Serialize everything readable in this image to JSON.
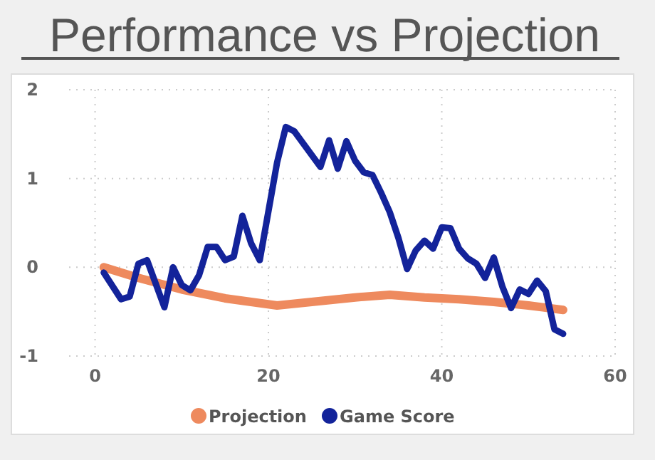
{
  "chart_data": {
    "type": "line",
    "title": "Performance vs Projection",
    "xlim": [
      -3,
      60
    ],
    "ylim": [
      -1,
      2
    ],
    "xticks": [
      0,
      20,
      40,
      60
    ],
    "yticks": [
      -1,
      0,
      1,
      2
    ],
    "grid": true,
    "legend": "bottom",
    "line_style": "solid",
    "marker": "none",
    "series": [
      {
        "name": "Projection",
        "color": "#ee8a5e",
        "x": [
          1,
          5,
          10,
          15,
          21,
          26,
          30,
          34,
          38,
          42,
          46,
          50,
          54
        ],
        "values": [
          0,
          -0.12,
          -0.25,
          -0.35,
          -0.43,
          -0.38,
          -0.34,
          -0.31,
          -0.34,
          -0.36,
          -0.39,
          -0.43,
          -0.48
        ]
      },
      {
        "name": "Game Score",
        "color": "#13239a",
        "x": [
          1,
          3,
          4,
          5,
          6,
          8,
          9,
          10,
          11,
          12,
          13,
          14,
          15,
          16,
          17,
          18,
          19,
          21,
          22,
          23,
          26,
          27,
          28,
          29,
          30,
          31,
          32,
          33,
          34,
          35,
          36,
          37,
          38,
          39,
          40,
          41,
          42,
          43,
          44,
          45,
          46,
          47,
          48,
          49,
          50,
          51,
          52,
          53,
          54
        ],
        "values": [
          -0.06,
          -0.36,
          -0.33,
          0.04,
          0.08,
          -0.45,
          0,
          -0.2,
          -0.26,
          -0.09,
          0.23,
          0.23,
          0.08,
          0.12,
          0.58,
          0.27,
          0.08,
          1.18,
          1.58,
          1.53,
          1.13,
          1.43,
          1.11,
          1.42,
          1.2,
          1.07,
          1.04,
          0.84,
          0.62,
          0.33,
          -0.02,
          0.19,
          0.3,
          0.21,
          0.45,
          0.44,
          0.21,
          0.1,
          0.04,
          -0.12,
          0.11,
          -0.22,
          -0.46,
          -0.25,
          -0.3,
          -0.15,
          -0.27,
          -0.7,
          -0.75
        ]
      }
    ]
  }
}
